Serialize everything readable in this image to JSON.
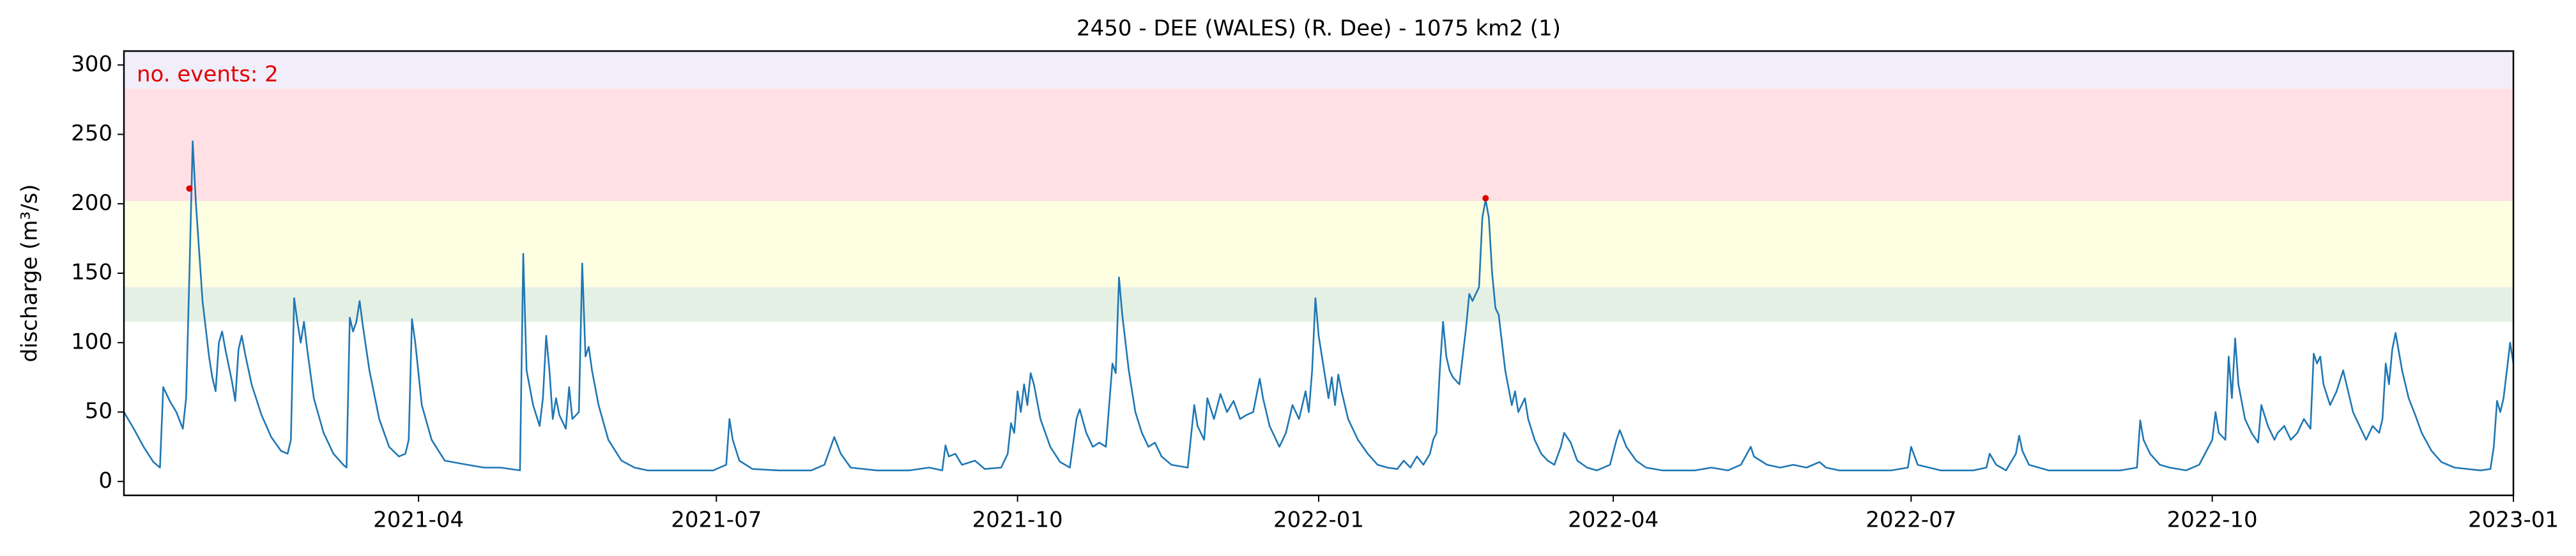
{
  "chart_data": {
    "type": "line",
    "title": "2450 - DEE (WALES) (R. Dee) - 1075 km2 (1)",
    "y_label": "discharge (m³/s)",
    "annotation": "no. events: 2",
    "annotation_color": "#e00000",
    "xlim": [
      0,
      730
    ],
    "xticks": [
      {
        "value": 90,
        "label": "2021-04"
      },
      {
        "value": 181,
        "label": "2021-07"
      },
      {
        "value": 273,
        "label": "2021-10"
      },
      {
        "value": 365,
        "label": "2022-01"
      },
      {
        "value": 455,
        "label": "2022-04"
      },
      {
        "value": 546,
        "label": "2022-07"
      },
      {
        "value": 638,
        "label": "2022-10"
      },
      {
        "value": 730,
        "label": "2023-01"
      }
    ],
    "ylim": [
      -10,
      310
    ],
    "yticks": [
      0,
      50,
      100,
      150,
      200,
      250,
      300
    ],
    "bands": [
      {
        "from": 115,
        "to": 140,
        "color": "#e5f0e5"
      },
      {
        "from": 140,
        "to": 202,
        "color": "#fefee3"
      },
      {
        "from": 202,
        "to": 283,
        "color": "#ffe0e4"
      },
      {
        "from": 283,
        "to": 310,
        "color": "#f1eefa"
      }
    ],
    "events": {
      "x": [
        20,
        416
      ],
      "values": [
        211,
        204
      ],
      "color": "#e00000"
    },
    "x": [
      0,
      3,
      6,
      9,
      11,
      12,
      14,
      16,
      18,
      19,
      20,
      21,
      22,
      24,
      26,
      27,
      28,
      29,
      30,
      31,
      33,
      34,
      35,
      36,
      37,
      39,
      42,
      45,
      48,
      50,
      51,
      52,
      53,
      54,
      55,
      56,
      58,
      61,
      64,
      67,
      68,
      69,
      70,
      71,
      72,
      73,
      75,
      78,
      81,
      84,
      86,
      87,
      88,
      89,
      91,
      94,
      98,
      105,
      110,
      115,
      121,
      122,
      123,
      125,
      127,
      128,
      129,
      130,
      131,
      132,
      133,
      135,
      136,
      137,
      139,
      140,
      141,
      142,
      143,
      145,
      148,
      152,
      156,
      160,
      170,
      180,
      184,
      185,
      186,
      188,
      192,
      200,
      210,
      214,
      217,
      219,
      222,
      230,
      240,
      246,
      250,
      251,
      252,
      254,
      256,
      260,
      263,
      268,
      270,
      271,
      272,
      273,
      274,
      275,
      276,
      277,
      278,
      280,
      283,
      286,
      289,
      291,
      292,
      294,
      296,
      298,
      300,
      302,
      303,
      304,
      305,
      307,
      309,
      311,
      313,
      315,
      317,
      320,
      325,
      327,
      328,
      330,
      331,
      333,
      335,
      337,
      339,
      341,
      343,
      345,
      347,
      348,
      350,
      353,
      355,
      357,
      359,
      361,
      362,
      363,
      364,
      365,
      366,
      368,
      369,
      370,
      371,
      372,
      374,
      377,
      380,
      383,
      386,
      389,
      391,
      393,
      395,
      397,
      399,
      400,
      401,
      402,
      403,
      404,
      405,
      406,
      408,
      410,
      411,
      412,
      414,
      415,
      416,
      417,
      418,
      419,
      420,
      422,
      424,
      425,
      426,
      428,
      429,
      431,
      433,
      435,
      437,
      439,
      440,
      442,
      444,
      447,
      450,
      454,
      456,
      457,
      459,
      462,
      465,
      470,
      480,
      485,
      490,
      494,
      497,
      498,
      502,
      506,
      510,
      514,
      518,
      520,
      524,
      530,
      540,
      545,
      546,
      548,
      555,
      565,
      569,
      570,
      572,
      575,
      578,
      579,
      580,
      582,
      588,
      600,
      610,
      615,
      616,
      617,
      619,
      622,
      625,
      630,
      634,
      638,
      639,
      640,
      642,
      643,
      644,
      645,
      646,
      648,
      650,
      652,
      653,
      655,
      657,
      658,
      660,
      662,
      664,
      666,
      668,
      669,
      670,
      671,
      672,
      674,
      676,
      678,
      679,
      681,
      683,
      685,
      687,
      689,
      690,
      691,
      692,
      693,
      694,
      696,
      698,
      700,
      702,
      705,
      708,
      712,
      720,
      723,
      724,
      725,
      726,
      727,
      728,
      729,
      730
    ],
    "series": [
      {
        "name": "discharge",
        "color": "#1f77b4",
        "values": [
          50,
          38,
          25,
          14,
          10,
          68,
          58,
          50,
          38,
          60,
          150,
          245,
          200,
          130,
          90,
          75,
          65,
          100,
          108,
          95,
          72,
          58,
          95,
          105,
          92,
          70,
          48,
          32,
          22,
          20,
          30,
          132,
          115,
          100,
          115,
          95,
          60,
          35,
          20,
          12,
          10,
          118,
          108,
          115,
          130,
          112,
          80,
          45,
          25,
          18,
          20,
          30,
          117,
          100,
          55,
          30,
          15,
          12,
          10,
          10,
          8,
          164,
          80,
          55,
          40,
          60,
          105,
          80,
          45,
          60,
          48,
          38,
          68,
          45,
          50,
          157,
          90,
          97,
          80,
          55,
          30,
          15,
          10,
          8,
          8,
          8,
          12,
          45,
          30,
          15,
          9,
          8,
          8,
          12,
          32,
          20,
          10,
          8,
          8,
          10,
          8,
          26,
          18,
          20,
          12,
          15,
          9,
          10,
          20,
          42,
          35,
          65,
          50,
          70,
          55,
          78,
          70,
          45,
          25,
          14,
          10,
          45,
          52,
          35,
          25,
          28,
          25,
          85,
          78,
          147,
          120,
          80,
          50,
          35,
          25,
          28,
          18,
          12,
          10,
          55,
          40,
          30,
          60,
          45,
          63,
          50,
          58,
          45,
          48,
          50,
          74,
          60,
          40,
          25,
          35,
          55,
          45,
          65,
          50,
          80,
          132,
          105,
          90,
          60,
          75,
          55,
          77,
          65,
          45,
          30,
          20,
          12,
          10,
          9,
          15,
          10,
          18,
          12,
          20,
          30,
          35,
          80,
          115,
          90,
          80,
          75,
          70,
          110,
          135,
          130,
          140,
          190,
          203,
          190,
          150,
          125,
          120,
          80,
          55,
          65,
          50,
          60,
          45,
          30,
          20,
          15,
          12,
          25,
          35,
          28,
          15,
          10,
          8,
          12,
          30,
          37,
          25,
          15,
          10,
          8,
          8,
          10,
          8,
          12,
          25,
          18,
          12,
          10,
          12,
          10,
          14,
          10,
          8,
          8,
          8,
          10,
          25,
          12,
          8,
          8,
          10,
          20,
          12,
          8,
          20,
          33,
          22,
          12,
          8,
          8,
          8,
          10,
          44,
          30,
          20,
          12,
          10,
          8,
          12,
          30,
          50,
          35,
          30,
          90,
          60,
          103,
          70,
          45,
          35,
          28,
          55,
          40,
          30,
          35,
          40,
          30,
          35,
          45,
          38,
          92,
          85,
          90,
          70,
          55,
          65,
          80,
          70,
          50,
          40,
          30,
          40,
          35,
          45,
          85,
          70,
          95,
          107,
          80,
          60,
          48,
          35,
          22,
          14,
          10,
          8,
          9,
          25,
          58,
          50,
          60,
          80,
          100,
          85
        ]
      }
    ]
  }
}
